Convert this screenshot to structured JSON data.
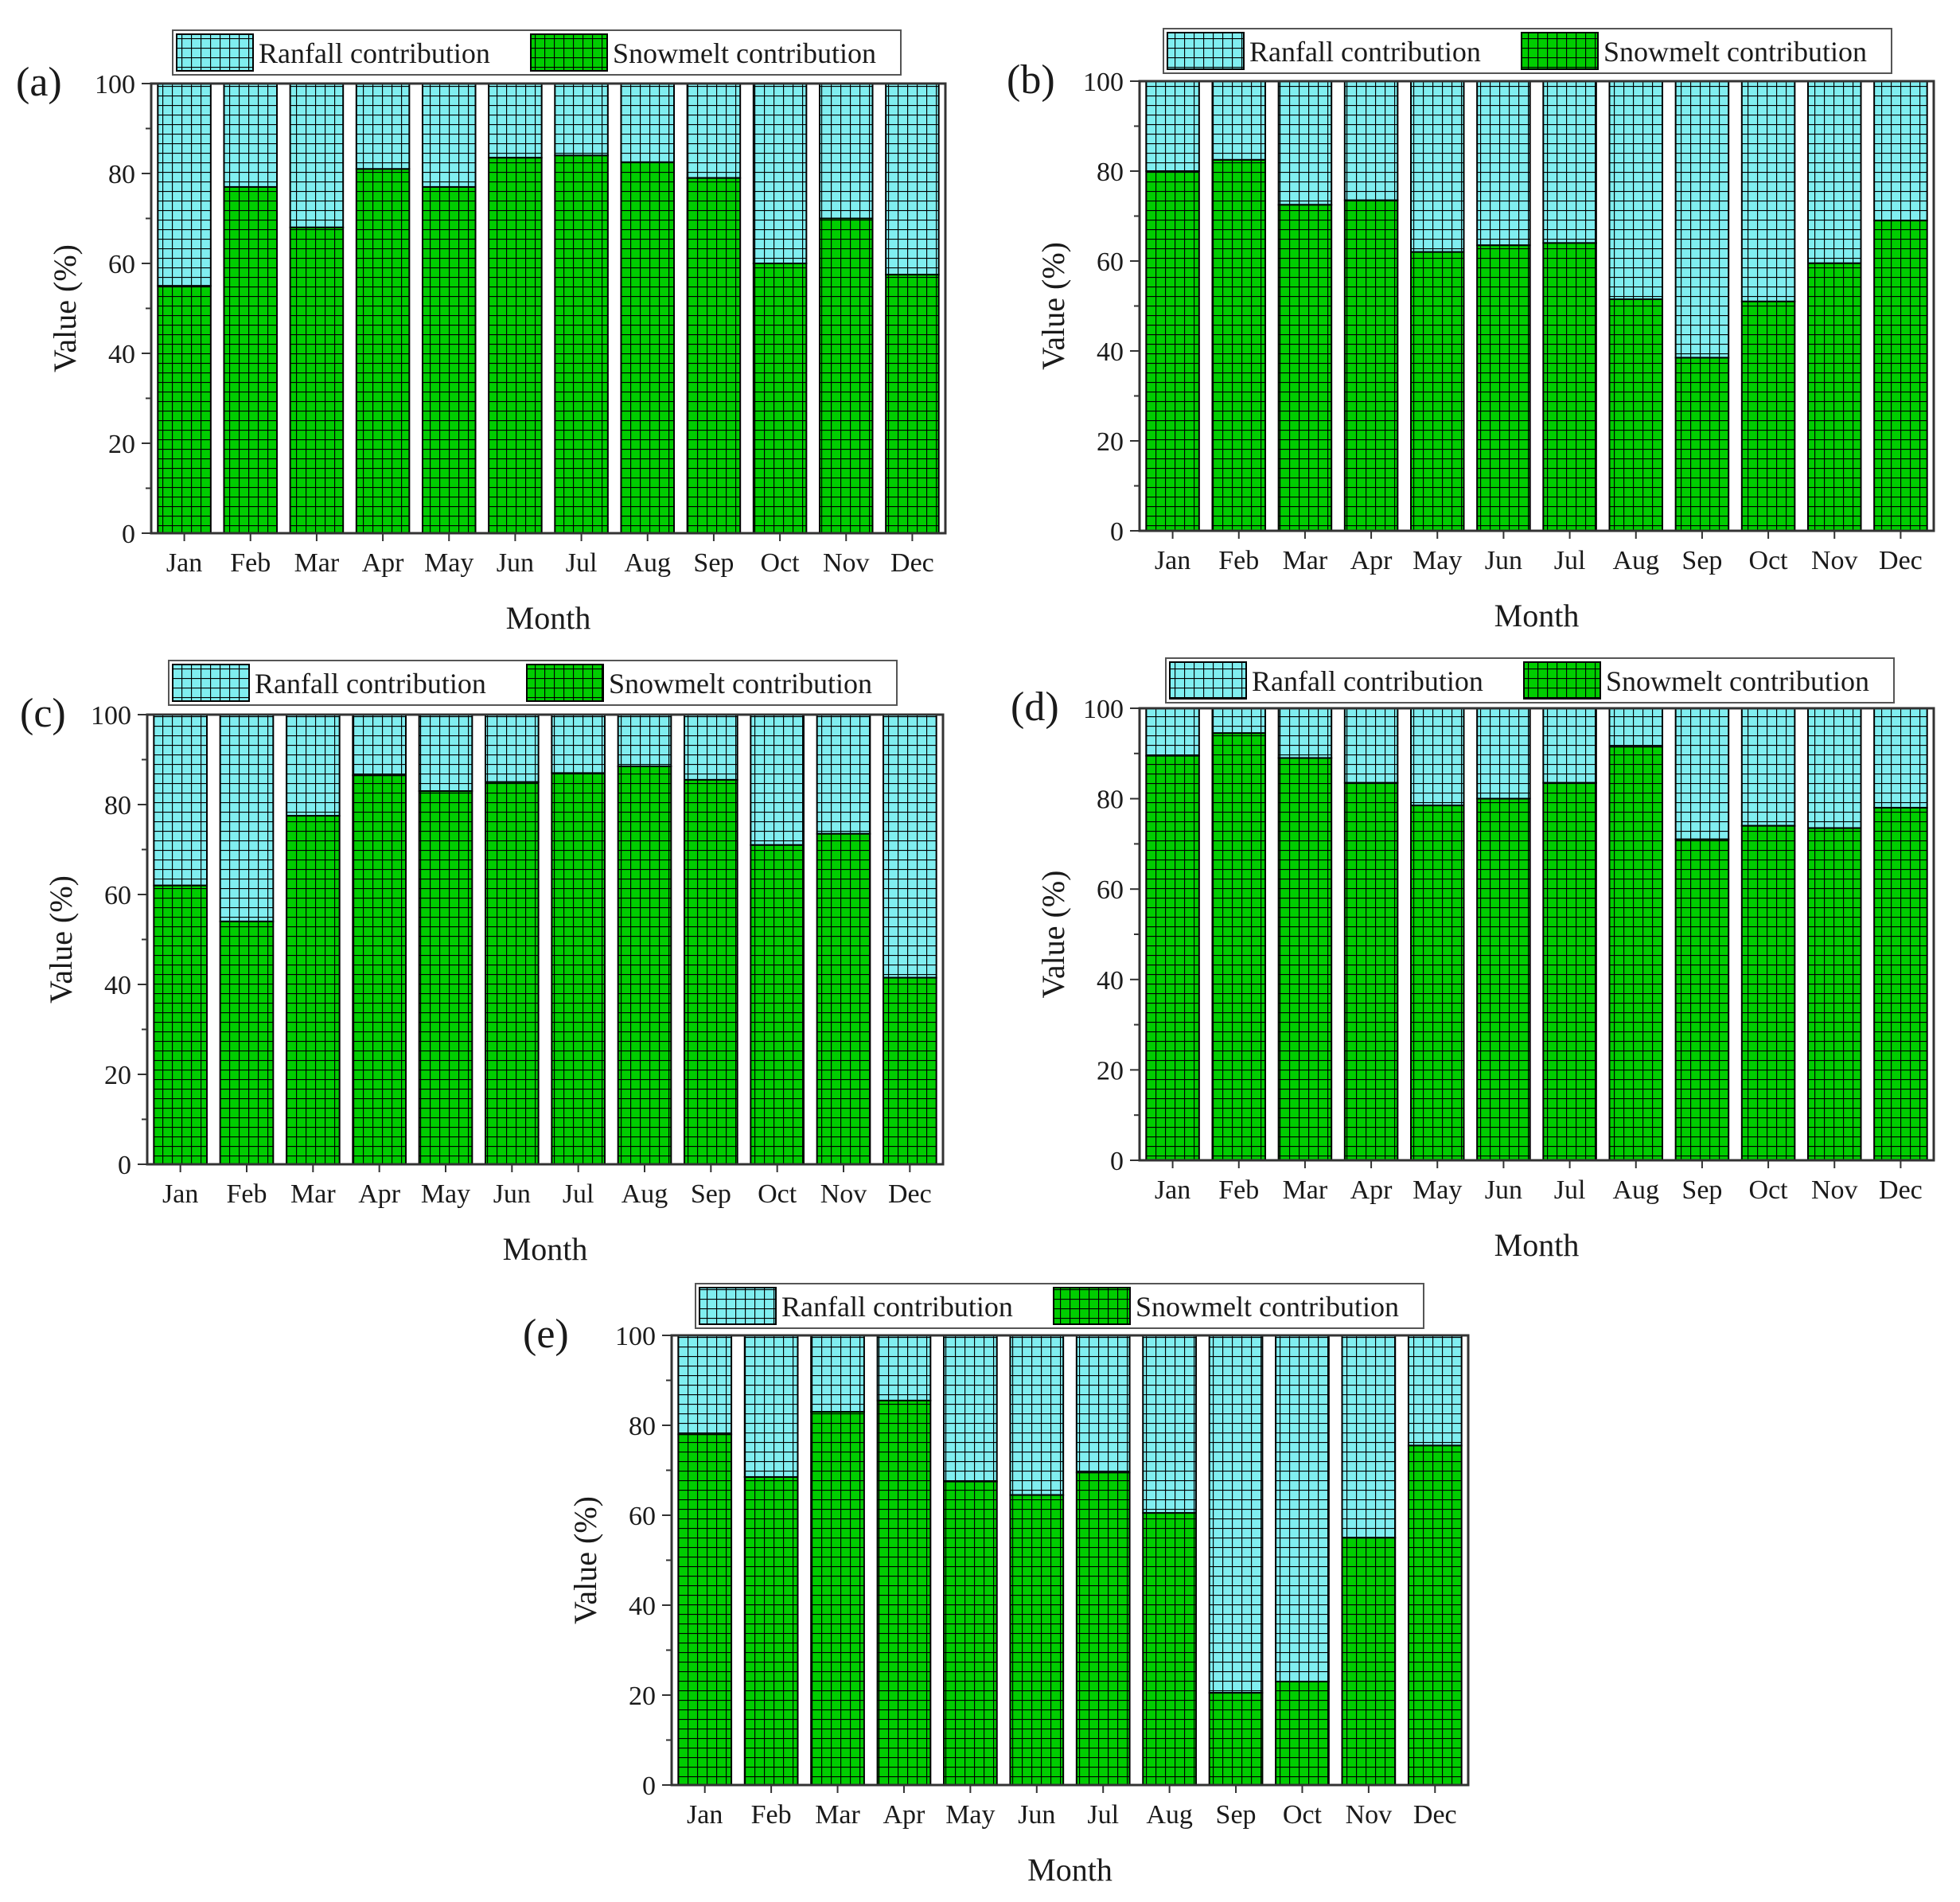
{
  "colors": {
    "rainfall_fill": "#80eef0",
    "snowmelt_fill": "#00cd00",
    "hatch_line": "#000000",
    "axis": "#333333"
  },
  "legend": {
    "rainfall_label": "Ranfall contribution",
    "snowmelt_label": "Snowmelt contribution"
  },
  "chart_data": [
    {
      "panel": "(a)",
      "type": "bar",
      "stacked": true,
      "xlabel": "Month",
      "ylabel": "Value (%)",
      "ylim": [
        0,
        100
      ],
      "yticks": [
        "0",
        "20",
        "40",
        "60",
        "80",
        "100"
      ],
      "categories": [
        "Jan",
        "Feb",
        "Mar",
        "Apr",
        "May",
        "Jun",
        "Jul",
        "Aug",
        "Sep",
        "Oct",
        "Nov",
        "Dec"
      ],
      "series": [
        {
          "name": "Snowmelt contribution",
          "values": [
            55,
            77,
            68,
            81,
            77,
            83.5,
            84,
            82.5,
            79,
            60,
            70,
            57.5
          ]
        },
        {
          "name": "Ranfall contribution",
          "values": [
            45,
            23,
            32,
            19,
            23,
            16.5,
            16,
            17.5,
            21,
            40,
            30,
            42.5
          ]
        }
      ]
    },
    {
      "panel": "(b)",
      "type": "bar",
      "stacked": true,
      "xlabel": "Month",
      "ylabel": "Value (%)",
      "ylim": [
        0,
        100
      ],
      "yticks": [
        "0",
        "20",
        "40",
        "60",
        "80",
        "100"
      ],
      "categories": [
        "Jan",
        "Feb",
        "Mar",
        "Apr",
        "May",
        "Jun",
        "Jul",
        "Aug",
        "Sep",
        "Oct",
        "Nov",
        "Dec"
      ],
      "series": [
        {
          "name": "Snowmelt contribution",
          "values": [
            80,
            82.5,
            72.5,
            73.5,
            62,
            63.5,
            64,
            51.5,
            38.5,
            51,
            59.5,
            69
          ]
        },
        {
          "name": "Ranfall contribution",
          "values": [
            20,
            17.5,
            27.5,
            26.5,
            38,
            36.5,
            36,
            48.5,
            61.5,
            49,
            40.5,
            31
          ]
        }
      ]
    },
    {
      "panel": "(c)",
      "type": "bar",
      "stacked": true,
      "xlabel": "Month",
      "ylabel": "Value (%)",
      "ylim": [
        0,
        100
      ],
      "yticks": [
        "0",
        "20",
        "40",
        "60",
        "80",
        "100"
      ],
      "categories": [
        "Jan",
        "Feb",
        "Mar",
        "Apr",
        "May",
        "Jun",
        "Jul",
        "Aug",
        "Sep",
        "Oct",
        "Nov",
        "Dec"
      ],
      "series": [
        {
          "name": "Snowmelt contribution",
          "values": [
            62,
            54,
            77.5,
            86.5,
            83,
            85,
            87,
            88.5,
            85.5,
            71,
            73.5,
            41.5
          ]
        },
        {
          "name": "Ranfall contribution",
          "values": [
            38,
            46,
            22.5,
            13.5,
            17,
            15,
            13,
            11.5,
            14.5,
            29,
            26.5,
            58.5
          ]
        }
      ]
    },
    {
      "panel": "(d)",
      "type": "bar",
      "stacked": true,
      "xlabel": "Month",
      "ylabel": "Value (%)",
      "ylim": [
        0,
        100
      ],
      "yticks": [
        "0",
        "20",
        "40",
        "60",
        "80",
        "100"
      ],
      "categories": [
        "Jan",
        "Feb",
        "Mar",
        "Apr",
        "May",
        "Jun",
        "Jul",
        "Aug",
        "Sep",
        "Oct",
        "Nov",
        "Dec"
      ],
      "series": [
        {
          "name": "Snowmelt contribution",
          "values": [
            89.5,
            94.5,
            89,
            83.5,
            78.5,
            80,
            83.5,
            91.5,
            71,
            74,
            73.5,
            78
          ]
        },
        {
          "name": "Ranfall contribution",
          "values": [
            10.5,
            5.5,
            11,
            16.5,
            21.5,
            20,
            16.5,
            8.5,
            29,
            26,
            26.5,
            22
          ]
        }
      ]
    },
    {
      "panel": "(e)",
      "type": "bar",
      "stacked": true,
      "xlabel": "Month",
      "ylabel": "Value (%)",
      "ylim": [
        0,
        100
      ],
      "yticks": [
        "0",
        "20",
        "40",
        "60",
        "80",
        "100"
      ],
      "categories": [
        "Jan",
        "Feb",
        "Mar",
        "Apr",
        "May",
        "Jun",
        "Jul",
        "Aug",
        "Sep",
        "Oct",
        "Nov",
        "Dec"
      ],
      "series": [
        {
          "name": "Snowmelt contribution",
          "values": [
            78,
            68.5,
            83,
            85.5,
            67.5,
            64.5,
            69.5,
            60.5,
            20.5,
            23,
            55,
            75.5
          ]
        },
        {
          "name": "Ranfall contribution",
          "values": [
            22,
            31.5,
            17,
            14.5,
            32.5,
            35.5,
            30.5,
            39.5,
            79.5,
            77,
            45,
            24.5
          ]
        }
      ]
    }
  ]
}
